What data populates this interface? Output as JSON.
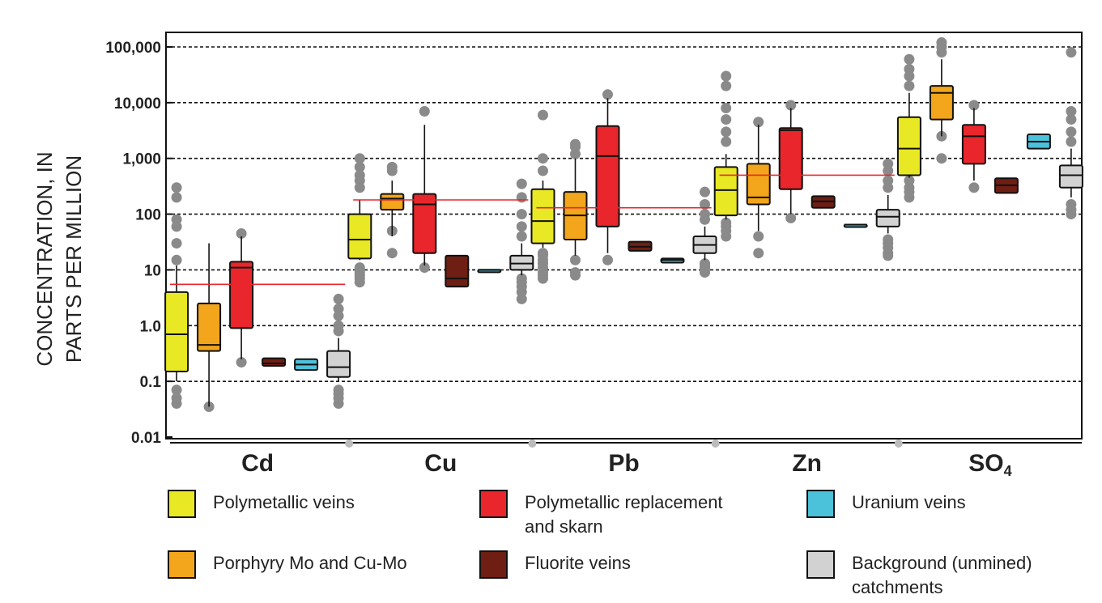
{
  "chart_data": {
    "type": "box",
    "ylabel_lines": [
      "CONCENTRATION, IN",
      "PARTS PER MILLION"
    ],
    "y_scale": "log",
    "ylim": [
      0.01,
      150000
    ],
    "yticks": [
      {
        "value": 0.01,
        "label": "0.01"
      },
      {
        "value": 0.1,
        "label": "0.1"
      },
      {
        "value": 1,
        "label": "1.0"
      },
      {
        "value": 10,
        "label": "10"
      },
      {
        "value": 100,
        "label": "100"
      },
      {
        "value": 1000,
        "label": "1,000"
      },
      {
        "value": 10000,
        "label": "10,000"
      },
      {
        "value": 100000,
        "label": "100,000"
      }
    ],
    "grid": "horizontal-dashed",
    "categories": [
      {
        "label": "Cd",
        "sub": "",
        "reference_line": 5.5
      },
      {
        "label": "Cu",
        "sub": "",
        "reference_line": 180
      },
      {
        "label": "Pb",
        "sub": "",
        "reference_line": 130
      },
      {
        "label": "Zn",
        "sub": "",
        "reference_line": 500
      },
      {
        "label": "SO",
        "sub": "4",
        "reference_line": null
      }
    ],
    "series": [
      {
        "name": "Polymetallic veins",
        "color": "#e8e824",
        "boxes": [
          {
            "min": 0.1,
            "q1": 0.15,
            "median": 0.7,
            "q3": 4,
            "max": 12,
            "outliers": [
              0.04,
              0.05,
              0.07,
              15,
              30,
              60,
              80,
              200,
              300
            ]
          },
          {
            "min": 15,
            "q1": 16,
            "median": 35,
            "q3": 100,
            "max": 180,
            "outliers": [
              6,
              7,
              8,
              9,
              10,
              11,
              300,
              400,
              500,
              700,
              1000
            ]
          },
          {
            "min": 25,
            "q1": 30,
            "median": 75,
            "q3": 280,
            "max": 400,
            "outliers": [
              7,
              8,
              9,
              11,
              13,
              15,
              18,
              20,
              600,
              1000,
              6000
            ]
          },
          {
            "min": 80,
            "q1": 95,
            "median": 270,
            "q3": 700,
            "max": 1200,
            "outliers": [
              40,
              50,
              60,
              70,
              2000,
              3000,
              5000,
              8000,
              20000,
              30000
            ]
          },
          {
            "min": 450,
            "q1": 500,
            "median": 1500,
            "q3": 5500,
            "max": 15000,
            "outliers": [
              200,
              250,
              300,
              400,
              20000,
              30000,
              40000,
              60000
            ]
          }
        ]
      },
      {
        "name": "Porphyry Mo and Cu-Mo",
        "color": "#f3a51b",
        "boxes": [
          {
            "min": 0.035,
            "q1": 0.35,
            "median": 0.45,
            "q3": 2.5,
            "max": 30,
            "outliers": [
              0.035
            ]
          },
          {
            "min": 40,
            "q1": 120,
            "median": 190,
            "q3": 230,
            "max": 400,
            "outliers": [
              20,
              50,
              600,
              700
            ]
          },
          {
            "min": 18,
            "q1": 35,
            "median": 95,
            "q3": 250,
            "max": 1000,
            "outliers": [
              8,
              9,
              15,
              1200,
              1600,
              1800
            ]
          },
          {
            "min": 50,
            "q1": 150,
            "median": 200,
            "q3": 800,
            "max": 4000,
            "outliers": [
              20,
              40,
              4500
            ]
          },
          {
            "min": 2500,
            "q1": 5000,
            "median": 15000,
            "q3": 20000,
            "max": 60000,
            "outliers": [
              1000,
              2500,
              80000,
              100000,
              120000
            ]
          }
        ]
      },
      {
        "name": "Polymetallic replacement and skarn",
        "color": "#e8262b",
        "boxes": [
          {
            "min": 0.25,
            "q1": 0.9,
            "median": 11,
            "q3": 14,
            "max": 40,
            "outliers": [
              0.22,
              45
            ]
          },
          {
            "min": 12,
            "q1": 20,
            "median": 150,
            "q3": 230,
            "max": 4000,
            "outliers": [
              11,
              7000
            ]
          },
          {
            "min": 20,
            "q1": 60,
            "median": 1100,
            "q3": 3800,
            "max": 12000,
            "outliers": [
              15,
              14000
            ]
          },
          {
            "min": 100,
            "q1": 280,
            "median": 3200,
            "q3": 3500,
            "max": 8000,
            "outliers": [
              85,
              9000
            ]
          },
          {
            "min": 400,
            "q1": 800,
            "median": 2500,
            "q3": 4000,
            "max": 8000,
            "outliers": [
              300,
              9000
            ]
          }
        ]
      },
      {
        "name": "Fluorite veins",
        "color": "#6e1e12",
        "boxes": [
          {
            "min": 0.19,
            "q1": 0.19,
            "median": 0.21,
            "q3": 0.26,
            "max": 0.26,
            "outliers": []
          },
          {
            "min": 5,
            "q1": 5,
            "median": 7,
            "q3": 18,
            "max": 18,
            "outliers": []
          },
          {
            "min": 22,
            "q1": 22,
            "median": 26,
            "q3": 32,
            "max": 32,
            "outliers": []
          },
          {
            "min": 130,
            "q1": 130,
            "median": 170,
            "q3": 210,
            "max": 210,
            "outliers": []
          },
          {
            "min": 240,
            "q1": 240,
            "median": 330,
            "q3": 440,
            "max": 440,
            "outliers": []
          }
        ]
      },
      {
        "name": "Uranium veins",
        "color": "#4cc1da",
        "boxes": [
          {
            "min": 0.16,
            "q1": 0.16,
            "median": 0.2,
            "q3": 0.25,
            "max": 0.25,
            "outliers": []
          },
          {
            "min": 10,
            "q1": 10,
            "median": 10,
            "q3": 10,
            "max": 10,
            "outliers": []
          },
          {
            "min": 13.5,
            "q1": 13.5,
            "median": 15,
            "q3": 16,
            "max": 16,
            "outliers": []
          },
          {
            "min": 65,
            "q1": 65,
            "median": 65,
            "q3": 65,
            "max": 65,
            "outliers": []
          },
          {
            "min": 1500,
            "q1": 1500,
            "median": 2000,
            "q3": 2700,
            "max": 2700,
            "outliers": []
          }
        ]
      },
      {
        "name": "Background (unmined) catchments",
        "color": "#d2d2d2",
        "boxes": [
          {
            "min": 0.1,
            "q1": 0.12,
            "median": 0.18,
            "q3": 0.35,
            "max": 0.6,
            "outliers": [
              0.04,
              0.05,
              0.06,
              0.07,
              0.8,
              1,
              1.5,
              2,
              3
            ]
          },
          {
            "min": 8,
            "q1": 10,
            "median": 13,
            "q3": 18,
            "max": 30,
            "outliers": [
              3,
              4,
              5,
              6,
              7,
              40,
              60,
              100,
              200,
              350
            ]
          },
          {
            "min": 15,
            "q1": 20,
            "median": 28,
            "q3": 40,
            "max": 60,
            "outliers": [
              9,
              10,
              11,
              12,
              13,
              80,
              100,
              150,
              250
            ]
          },
          {
            "min": 45,
            "q1": 60,
            "median": 90,
            "q3": 120,
            "max": 220,
            "outliers": [
              18,
              20,
              25,
              30,
              35,
              300,
              400,
              600,
              800
            ]
          },
          {
            "min": 200,
            "q1": 300,
            "median": 500,
            "q3": 750,
            "max": 1500,
            "outliers": [
              100,
              120,
              150,
              2000,
              3000,
              5000,
              7000,
              80000
            ]
          }
        ]
      }
    ],
    "legend": [
      {
        "label": "Polymetallic veins",
        "color": "#e8e824"
      },
      {
        "label": "Porphyry Mo and Cu-Mo",
        "color": "#f3a51b"
      },
      {
        "label_lines": [
          "Polymetallic replacement",
          "and skarn"
        ],
        "color": "#e8262b"
      },
      {
        "label": "Fluorite veins",
        "color": "#6e1e12"
      },
      {
        "label": "Uranium veins",
        "color": "#4cc1da"
      },
      {
        "label_lines": [
          "Background (unmined)",
          "catchments"
        ],
        "color": "#d2d2d2"
      }
    ],
    "colors": {
      "outlier": "#8a8a8a",
      "reference_line": "#e8262b",
      "grid": "#111111"
    }
  }
}
